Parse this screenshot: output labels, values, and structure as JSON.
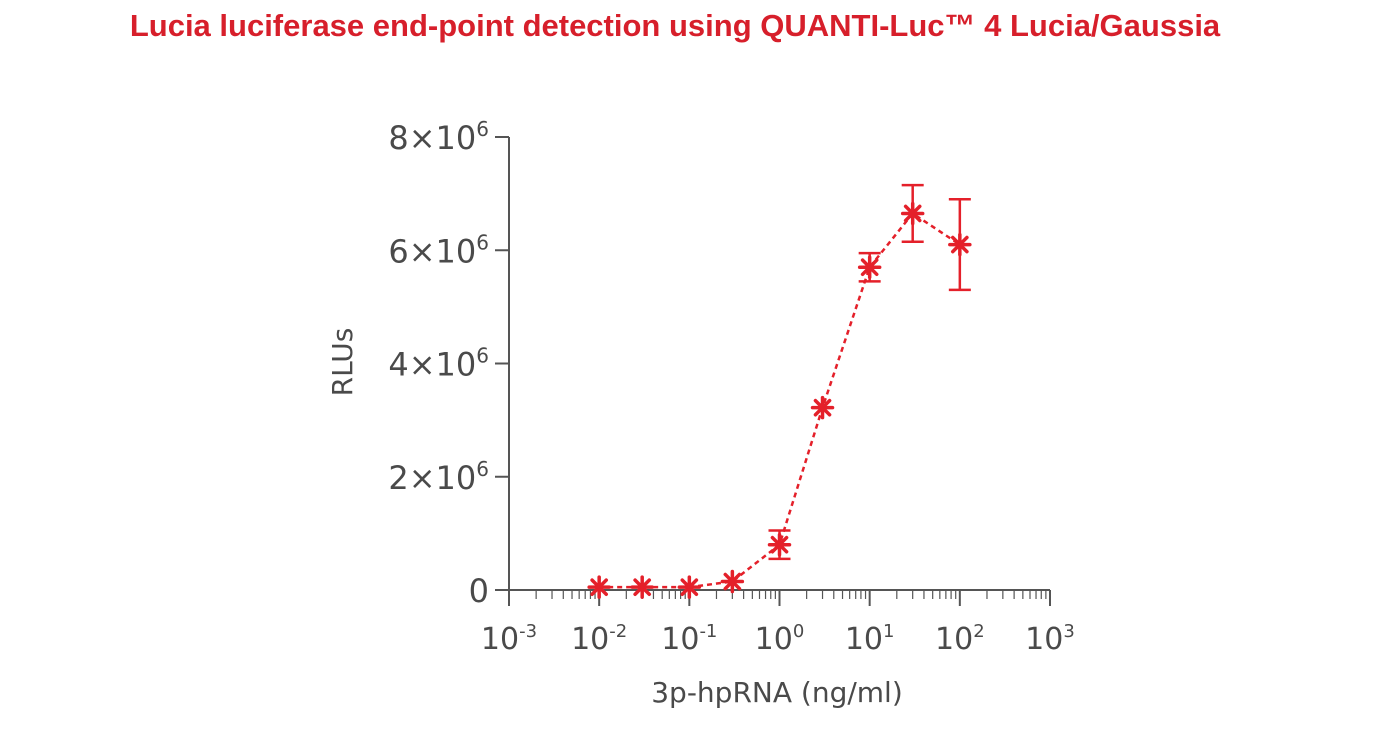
{
  "title": "Lucia luciferase end-point detection using QUANTI-Luc™ 4 Lucia/Gaussia",
  "colors": {
    "title": "#d71f2b",
    "series": "#e4202a",
    "axis": "#555555",
    "text": "#4a4a4a"
  },
  "chart_data": {
    "type": "scatter",
    "connected": true,
    "line_style": "dashed",
    "marker": "asterisk",
    "xlabel": "3p-hpRNA (ng/ml)",
    "ylabel": "RLUs",
    "xscale": "log",
    "xlim": [
      0.001,
      1000
    ],
    "ylim": [
      0,
      8000000
    ],
    "grid": false,
    "x_ticks": [
      {
        "value": 0.001,
        "base": "10",
        "exp": "-3"
      },
      {
        "value": 0.01,
        "base": "10",
        "exp": "-2"
      },
      {
        "value": 0.1,
        "base": "10",
        "exp": "-1"
      },
      {
        "value": 1,
        "base": "10",
        "exp": "0"
      },
      {
        "value": 10,
        "base": "10",
        "exp": "1"
      },
      {
        "value": 100,
        "base": "10",
        "exp": "2"
      },
      {
        "value": 1000,
        "base": "10",
        "exp": "3"
      }
    ],
    "y_ticks": [
      {
        "value": 0,
        "base": "0",
        "exp": ""
      },
      {
        "value": 2000000,
        "base": "2×10",
        "exp": "6"
      },
      {
        "value": 4000000,
        "base": "4×10",
        "exp": "6"
      },
      {
        "value": 6000000,
        "base": "6×10",
        "exp": "6"
      },
      {
        "value": 8000000,
        "base": "8×10",
        "exp": "6"
      }
    ],
    "series": [
      {
        "points": [
          {
            "x": 0.01,
            "y": 50000,
            "err": 0
          },
          {
            "x": 0.03,
            "y": 50000,
            "err": 0
          },
          {
            "x": 0.1,
            "y": 50000,
            "err": 0
          },
          {
            "x": 0.3,
            "y": 150000,
            "err": 0
          },
          {
            "x": 1,
            "y": 800000,
            "err": 250000
          },
          {
            "x": 3,
            "y": 3220000,
            "err": 0
          },
          {
            "x": 10,
            "y": 5700000,
            "err": 250000
          },
          {
            "x": 30,
            "y": 6650000,
            "err": 500000
          },
          {
            "x": 100,
            "y": 6100000,
            "err": 800000
          }
        ]
      }
    ]
  }
}
